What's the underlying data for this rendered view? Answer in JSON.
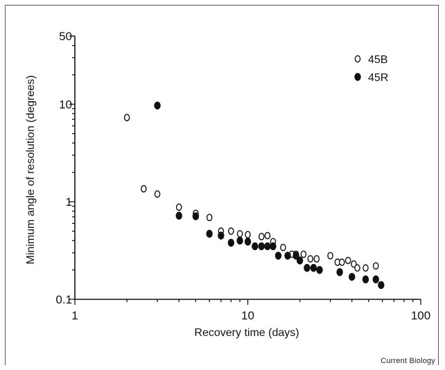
{
  "chart_data": {
    "type": "scatter",
    "xlabel": "Recovery time (days)",
    "ylabel": "Minimum angle of resolution (degrees)",
    "x_scale": "log",
    "y_scale": "log",
    "xlim": [
      1,
      100
    ],
    "ylim": [
      0.1,
      50
    ],
    "x_ticks": [
      {
        "value": 1,
        "label": "1"
      },
      {
        "value": 10,
        "label": "10"
      },
      {
        "value": 100,
        "label": "100"
      }
    ],
    "y_ticks": [
      {
        "value": 0.1,
        "label": "0.1"
      },
      {
        "value": 1,
        "label": "1"
      },
      {
        "value": 10,
        "label": "10"
      },
      {
        "value": 50,
        "label": "50"
      }
    ],
    "grid": false,
    "legend_position": "top-right",
    "series": [
      {
        "name": "45B",
        "marker": "open-circle",
        "points": [
          [
            2.0,
            7.3
          ],
          [
            2.5,
            1.36
          ],
          [
            3.0,
            1.2
          ],
          [
            4.0,
            0.88
          ],
          [
            5.0,
            0.76
          ],
          [
            6.0,
            0.69
          ],
          [
            7.0,
            0.5
          ],
          [
            8.0,
            0.5
          ],
          [
            9.0,
            0.47
          ],
          [
            10.0,
            0.46
          ],
          [
            12.0,
            0.44
          ],
          [
            13.0,
            0.45
          ],
          [
            14.0,
            0.39
          ],
          [
            16.0,
            0.34
          ],
          [
            18.0,
            0.29
          ],
          [
            19.0,
            0.29
          ],
          [
            21.0,
            0.29
          ],
          [
            23.0,
            0.26
          ],
          [
            25.0,
            0.26
          ],
          [
            30.0,
            0.28
          ],
          [
            33.0,
            0.24
          ],
          [
            35.0,
            0.24
          ],
          [
            38.0,
            0.25
          ],
          [
            41.0,
            0.23
          ],
          [
            43.0,
            0.21
          ],
          [
            48.0,
            0.21
          ],
          [
            55.0,
            0.22
          ]
        ]
      },
      {
        "name": "45R",
        "marker": "filled-circle",
        "points": [
          [
            3.0,
            9.7
          ],
          [
            4.0,
            0.72
          ],
          [
            5.0,
            0.71
          ],
          [
            6.0,
            0.47
          ],
          [
            7.0,
            0.45
          ],
          [
            8.0,
            0.38
          ],
          [
            9.0,
            0.4
          ],
          [
            10.0,
            0.39
          ],
          [
            11.0,
            0.35
          ],
          [
            12.0,
            0.35
          ],
          [
            13.0,
            0.35
          ],
          [
            14.0,
            0.35
          ],
          [
            15.0,
            0.28
          ],
          [
            17.0,
            0.28
          ],
          [
            19.0,
            0.28
          ],
          [
            20.0,
            0.25
          ],
          [
            22.0,
            0.21
          ],
          [
            24.0,
            0.21
          ],
          [
            26.0,
            0.2
          ],
          [
            34.0,
            0.19
          ],
          [
            40.0,
            0.17
          ],
          [
            48.0,
            0.16
          ],
          [
            55.0,
            0.16
          ],
          [
            59.0,
            0.14
          ]
        ]
      }
    ]
  },
  "credit": "Current Biology"
}
